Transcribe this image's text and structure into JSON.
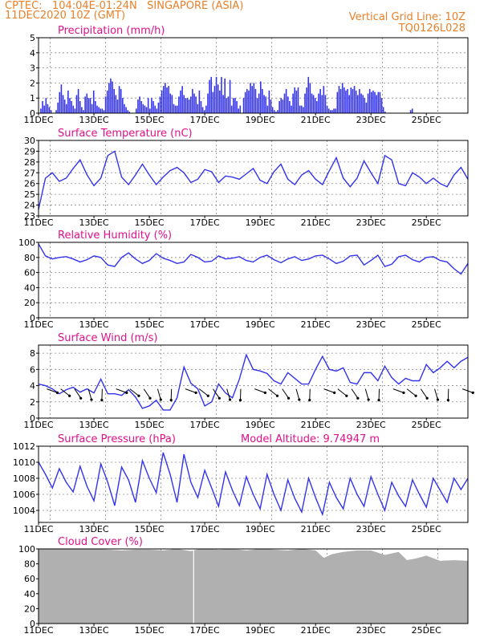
{
  "header": {
    "line1": "CPTEC:   104:04E-01:24N   SINGAPORE (ASIA)",
    "line2": "11DEC2020 10Z (GMT)",
    "right1": "Vertical Grid Line: 10Z",
    "right2": "TQ0126L028"
  },
  "colors": {
    "header": "#e8802a",
    "title": "#e0108a",
    "series": "#3333ee",
    "cloud": "#b0b0b0"
  },
  "chart_data": [
    {
      "type": "bar",
      "title": "Precipitation  (mm/h)",
      "ylim": [
        0,
        5
      ],
      "yticks": [
        "0",
        "1",
        "2",
        "3",
        "4",
        "5"
      ],
      "xticks": [
        "11DEC",
        "13DEC",
        "15DEC",
        "17DEC",
        "19DEC",
        "21DEC",
        "23DEC",
        "25DEC"
      ],
      "series": [
        {
          "values": [
            0,
            0.3,
            0.8,
            0.5,
            1.0,
            0.6,
            0.4,
            0.2,
            0,
            0,
            0.2,
            0.7,
            1.4,
            1.9,
            1.2,
            0.9,
            0.6,
            1.5,
            1.0,
            0.8,
            0.5,
            0.3,
            1.2,
            1.6,
            0.8,
            0.4,
            0.2,
            1.1,
            1.3,
            1.0,
            1.0,
            0.6,
            1.5,
            0.8,
            0.5,
            0.4,
            0.3,
            0.3,
            0.2,
            1.1,
            1.5,
            2.0,
            2.3,
            2.1,
            1.6,
            1.2,
            0.9,
            1.8,
            1.6,
            1.0,
            0.6,
            0.4,
            0.2,
            0.1,
            0,
            0,
            0,
            0.3,
            0.9,
            1.1,
            0.8,
            0.6,
            0.5,
            0.4,
            1.0,
            0.3,
            1.0,
            0.8,
            0.5,
            0.3,
            0.7,
            1.1,
            1.5,
            1.8,
            2.0,
            1.7,
            1.8,
            1.3,
            1.2,
            0.6,
            0.5,
            0.5,
            1.1,
            1.5,
            1.8,
            1.2,
            1.0,
            1.0,
            0.9,
            1.1,
            1.6,
            1.3,
            1.1,
            0.6,
            1.5,
            0.8,
            0.4,
            0.2,
            0.5,
            1.3,
            2.2,
            2.4,
            1.4,
            1.8,
            2.4,
            1.9,
            1.5,
            2.4,
            1.2,
            2.3,
            1.0,
            1.1,
            2.2,
            0.5,
            1.0,
            1.0,
            0.8,
            0.3,
            0.5,
            0,
            1.0,
            1.4,
            1.6,
            1.5,
            2.0,
            1.8,
            2.0,
            1.6,
            1.0,
            1.3,
            2.1,
            1.6,
            1.2,
            1.1,
            0.5,
            1.5,
            0.9,
            0.4,
            0.2,
            0.1,
            0.2,
            0.8,
            1.0,
            0.9,
            1.3,
            1.6,
            1.1,
            0.8,
            0.5,
            1.3,
            1.7,
            1.5,
            1.7,
            0.5,
            0.5,
            0.4,
            1.3,
            1.7,
            2.4,
            2.0,
            1.3,
            1.2,
            1.0,
            0.8,
            1.3,
            1.6,
            1.2,
            1.8,
            1.2,
            0.5,
            0.3,
            0.2,
            0.2,
            0.3,
            0.3,
            1.4,
            1.8,
            1.6,
            2.0,
            1.7,
            1.5,
            1.6,
            1.2,
            1.7,
            1.6,
            1.8,
            1.5,
            1.2,
            1.6,
            1.3,
            1.2,
            1.0,
            0.7,
            1.3,
            1.6,
            1.4,
            1.5,
            1.4,
            1.2,
            1.4,
            1.4,
            1.0,
            0.4,
            0.1,
            0,
            0,
            0,
            0,
            0,
            0,
            0,
            0,
            0,
            0,
            0,
            0,
            0,
            0,
            0.2,
            0.3,
            0,
            0,
            0,
            0,
            0,
            0,
            0,
            0,
            0,
            0,
            0,
            0,
            0,
            0,
            0,
            0,
            0,
            0,
            0,
            0,
            0,
            0,
            0,
            0,
            0,
            0,
            0,
            0,
            0,
            0,
            0,
            0
          ]
        }
      ]
    },
    {
      "type": "line",
      "title": "Surface Temperature  (nC)",
      "ylim": [
        23,
        30
      ],
      "yticks": [
        "23",
        "24",
        "25",
        "26",
        "27",
        "28",
        "29",
        "30"
      ],
      "xticks": [
        "11DEC",
        "13DEC",
        "15DEC",
        "17DEC",
        "19DEC",
        "21DEC",
        "23DEC",
        "25DEC"
      ],
      "series": [
        {
          "x_days": [
            0,
            0.25,
            0.5,
            0.75,
            1,
            1.25,
            1.5,
            1.75,
            2,
            2.25,
            2.5,
            2.75,
            3,
            3.25,
            3.5,
            3.75,
            4,
            4.25,
            4.5,
            4.75,
            5,
            5.25,
            5.5,
            5.75,
            6,
            6.25,
            6.5,
            6.75,
            7,
            7.25,
            7.5,
            7.75,
            8,
            8.25,
            8.5,
            8.75,
            9,
            9.25,
            9.5,
            9.75,
            10,
            10.25,
            10.5,
            10.75,
            11,
            11.25,
            11.5,
            11.75,
            12,
            12.25,
            12.5,
            12.75,
            13,
            13.25,
            13.5,
            13.75,
            14,
            14.25,
            14.5,
            14.75,
            15,
            15.25,
            15.5
          ],
          "values": [
            23.6,
            26.5,
            27.0,
            26.2,
            26.5,
            27.4,
            28.2,
            26.8,
            25.8,
            26.5,
            28.6,
            29.0,
            26.6,
            25.9,
            26.8,
            27.8,
            26.8,
            25.9,
            26.6,
            27.2,
            27.5,
            27.0,
            26.1,
            26.4,
            27.3,
            27.1,
            26.1,
            26.7,
            26.6,
            26.4,
            26.9,
            27.4,
            26.3,
            26.0,
            27.1,
            27.8,
            26.4,
            25.9,
            26.8,
            27.2,
            26.4,
            25.9,
            27.2,
            28.4,
            26.5,
            25.7,
            26.5,
            28.1,
            27.0,
            26.0,
            28.6,
            28.2,
            26.0,
            25.8,
            27.0,
            26.6,
            26.0,
            26.5,
            26.0,
            25.7,
            26.8,
            27.5,
            26.4
          ]
        }
      ]
    },
    {
      "type": "line",
      "title": "Relative Humidity  (%)",
      "ylim": [
        0,
        100
      ],
      "yticks": [
        "0",
        "20",
        "40",
        "60",
        "80",
        "100"
      ],
      "xticks": [
        "11DEC",
        "13DEC",
        "15DEC",
        "17DEC",
        "19DEC",
        "21DEC",
        "23DEC",
        "25DEC"
      ],
      "series": [
        {
          "x_days": [
            0,
            0.25,
            0.5,
            0.75,
            1,
            1.25,
            1.5,
            1.75,
            2,
            2.25,
            2.5,
            2.75,
            3,
            3.25,
            3.5,
            3.75,
            4,
            4.25,
            4.5,
            4.75,
            5,
            5.25,
            5.5,
            5.75,
            6,
            6.25,
            6.5,
            6.75,
            7,
            7.25,
            7.5,
            7.75,
            8,
            8.25,
            8.5,
            8.75,
            9,
            9.25,
            9.5,
            9.75,
            10,
            10.25,
            10.5,
            10.75,
            11,
            11.25,
            11.5,
            11.75,
            12,
            12.25,
            12.5,
            12.75,
            13,
            13.25,
            13.5,
            13.75,
            14,
            14.25,
            14.5,
            14.75,
            15,
            15.25,
            15.5
          ],
          "values": [
            98,
            82,
            78,
            80,
            81,
            78,
            74,
            77,
            82,
            80,
            70,
            68,
            80,
            86,
            78,
            72,
            76,
            85,
            79,
            76,
            72,
            74,
            84,
            80,
            74,
            75,
            82,
            78,
            79,
            81,
            76,
            74,
            80,
            83,
            77,
            73,
            78,
            81,
            76,
            78,
            82,
            83,
            78,
            72,
            75,
            82,
            83,
            70,
            76,
            83,
            68,
            71,
            81,
            83,
            77,
            74,
            80,
            81,
            76,
            74,
            65,
            58,
            72
          ]
        }
      ]
    },
    {
      "type": "line",
      "title": "Surface Wind  (m/s)",
      "ylim": [
        0,
        9
      ],
      "yticks": [
        "0",
        "2",
        "4",
        "6",
        "8"
      ],
      "xticks": [
        "11DEC",
        "13DEC",
        "15DEC",
        "17DEC",
        "19DEC",
        "21DEC",
        "23DEC",
        "25DEC"
      ],
      "series": [
        {
          "x_days": [
            0,
            0.25,
            0.5,
            0.75,
            1,
            1.25,
            1.5,
            1.75,
            2,
            2.25,
            2.5,
            2.75,
            3,
            3.25,
            3.5,
            3.75,
            4,
            4.25,
            4.5,
            4.75,
            5,
            5.25,
            5.5,
            5.75,
            6,
            6.25,
            6.5,
            6.75,
            7,
            7.25,
            7.5,
            7.75,
            8,
            8.25,
            8.5,
            8.75,
            9,
            9.25,
            9.5,
            9.75,
            10,
            10.25,
            10.5,
            10.75,
            11,
            11.25,
            11.5,
            11.75,
            12,
            12.25,
            12.5,
            12.75,
            13,
            13.25,
            13.5,
            13.75,
            14,
            14.25,
            14.5,
            14.75,
            15,
            15.25,
            15.5
          ],
          "values": [
            4.2,
            4.0,
            3.6,
            3.0,
            3.5,
            3.8,
            3.2,
            3.6,
            3.1,
            4.8,
            3.0,
            3.0,
            2.8,
            3.5,
            2.6,
            1.2,
            1.5,
            2.2,
            1.0,
            1.0,
            2.5,
            6.3,
            4.3,
            3.6,
            1.5,
            2.0,
            4.2,
            3.1,
            2.5,
            4.8,
            7.8,
            6.0,
            5.8,
            5.5,
            4.6,
            4.2,
            5.6,
            4.9,
            4.2,
            4.2,
            6.0,
            7.6,
            6.0,
            5.8,
            6.2,
            4.4,
            4.2,
            5.6,
            5.6,
            4.6,
            6.4,
            5.0,
            4.2,
            4.9,
            4.6,
            4.6,
            6.6,
            5.6,
            6.2,
            7.0,
            6.2,
            7.0,
            7.5
          ]
        }
      ],
      "arrows_note": "wind direction vectors shown as black arrows"
    },
    {
      "type": "line",
      "title": "Surface Pressure  (hPa)",
      "annotation": "Model Altitude: 9.74947  m",
      "ylim": [
        1002.5,
        1012
      ],
      "yticks": [
        "1004",
        "1006",
        "1008",
        "1010",
        "1012"
      ],
      "xticks": [
        "11DEC",
        "13DEC",
        "15DEC",
        "17DEC",
        "19DEC",
        "21DEC",
        "23DEC",
        "25DEC"
      ],
      "series": [
        {
          "x_days": [
            0,
            0.25,
            0.5,
            0.75,
            1,
            1.25,
            1.5,
            1.75,
            2,
            2.25,
            2.5,
            2.75,
            3,
            3.25,
            3.5,
            3.75,
            4,
            4.25,
            4.5,
            4.75,
            5,
            5.25,
            5.5,
            5.75,
            6,
            6.25,
            6.5,
            6.75,
            7,
            7.25,
            7.5,
            7.75,
            8,
            8.25,
            8.5,
            8.75,
            9,
            9.25,
            9.5,
            9.75,
            10,
            10.25,
            10.5,
            10.75,
            11,
            11.25,
            11.5,
            11.75,
            12,
            12.25,
            12.5,
            12.75,
            13,
            13.25,
            13.5,
            13.75,
            14,
            14.25,
            14.5,
            14.75,
            15,
            15.25,
            15.5
          ],
          "values": [
            1010,
            1008.5,
            1006.8,
            1009.2,
            1007.5,
            1006.3,
            1009.5,
            1007.0,
            1005.2,
            1009.8,
            1007.5,
            1004.6,
            1009.4,
            1007.8,
            1005.0,
            1010.2,
            1008.0,
            1006.2,
            1011.2,
            1008.5,
            1005.0,
            1011.0,
            1007.5,
            1005.6,
            1009.0,
            1006.8,
            1004.5,
            1008.8,
            1006.5,
            1004.6,
            1008.2,
            1006.0,
            1004.2,
            1008.5,
            1006.0,
            1004.0,
            1007.8,
            1005.5,
            1003.8,
            1008.0,
            1005.6,
            1003.5,
            1007.5,
            1005.6,
            1004.2,
            1008.0,
            1006.0,
            1004.5,
            1008.2,
            1006.0,
            1004.0,
            1007.5,
            1005.8,
            1004.5,
            1007.8,
            1006.0,
            1004.4,
            1008.0,
            1006.5,
            1005.0,
            1008.0,
            1006.6,
            1008.0
          ]
        }
      ]
    },
    {
      "type": "area",
      "title": "Cloud Cover  (%)",
      "ylim": [
        0,
        100
      ],
      "yticks": [
        "0",
        "20",
        "40",
        "60",
        "80",
        "100"
      ],
      "xticks": [
        "11DEC",
        "13DEC",
        "15DEC",
        "17DEC",
        "19DEC",
        "21DEC",
        "23DEC",
        "25DEC"
      ],
      "series": [
        {
          "x_days": [
            0,
            0.5,
            1,
            1.5,
            2,
            2.5,
            3,
            3.5,
            4,
            4.5,
            5,
            5.5,
            5.8,
            6,
            6.5,
            7,
            7.5,
            8,
            8.5,
            9,
            9.5,
            10,
            10.3,
            10.6,
            11,
            11.5,
            12,
            12.5,
            13,
            13.3,
            13.6,
            14,
            14.5,
            15,
            15.5
          ],
          "values": [
            100,
            100,
            100,
            100,
            100,
            99,
            98,
            99,
            99,
            98,
            100,
            97,
            100,
            100,
            99,
            100,
            98,
            100,
            99,
            98,
            100,
            98,
            88,
            93,
            96,
            98,
            98,
            92,
            96,
            85,
            87,
            91,
            84,
            85,
            84
          ]
        }
      ]
    }
  ]
}
